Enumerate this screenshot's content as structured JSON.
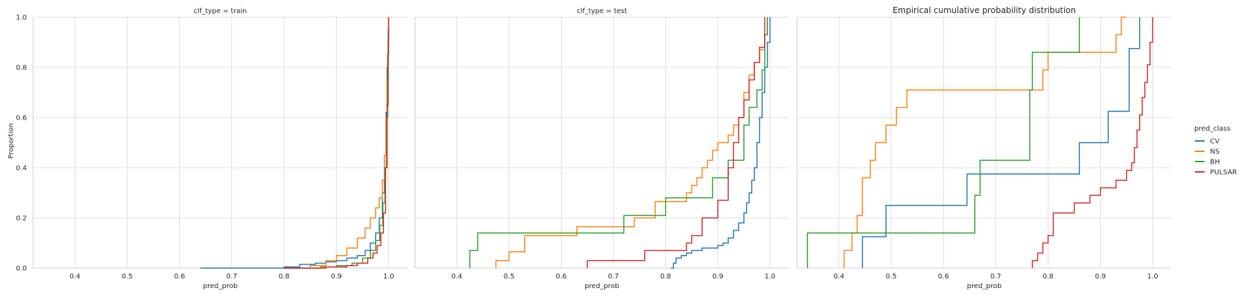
{
  "figure": {
    "suptitle": "Empirical cumulative probability distribution",
    "ylabel": "Proportion",
    "legend_title": "pred_class"
  },
  "colors": {
    "CV": "#1f77b4",
    "NS": "#ff7f0e",
    "BH": "#2ca02c",
    "PULSAR": "#d62728",
    "grid": "#dddddd",
    "axis": "#cccccc"
  },
  "chart_data": [
    {
      "type": "line",
      "subtype": "ecdf-step",
      "title": "clf_type = train",
      "xlabel": "pred_prob",
      "ylabel": "Proportion",
      "xlim": [
        0.32,
        1.036
      ],
      "ylim": [
        0,
        1
      ],
      "xticks": [
        "0.4",
        "0.5",
        "0.6",
        "0.7",
        "0.8",
        "0.9",
        "1.0"
      ],
      "yticks": [
        "0.0",
        "0.2",
        "0.4",
        "0.6",
        "0.8",
        "1.0"
      ],
      "grid": true,
      "series": [
        {
          "name": "CV",
          "x": [
            0.64,
            0.8,
            0.83,
            0.86,
            0.88,
            0.9,
            0.92,
            0.94,
            0.955,
            0.965,
            0.975,
            0.982,
            0.988,
            0.992,
            0.995,
            0.997,
            0.999,
            1.0
          ],
          "y": [
            0,
            0.005,
            0.015,
            0.02,
            0.025,
            0.03,
            0.04,
            0.05,
            0.07,
            0.1,
            0.14,
            0.2,
            0.3,
            0.45,
            0.62,
            0.8,
            0.95,
            1.0
          ]
        },
        {
          "name": "NS",
          "x": [
            0.8,
            0.85,
            0.88,
            0.9,
            0.92,
            0.94,
            0.955,
            0.965,
            0.975,
            0.982,
            0.988,
            0.992,
            0.995,
            0.997,
            0.999,
            1.0
          ],
          "y": [
            0,
            0.01,
            0.03,
            0.05,
            0.08,
            0.12,
            0.16,
            0.2,
            0.24,
            0.28,
            0.35,
            0.45,
            0.6,
            0.75,
            0.9,
            1.0
          ]
        },
        {
          "name": "BH",
          "x": [
            0.8,
            0.87,
            0.9,
            0.93,
            0.95,
            0.965,
            0.975,
            0.983,
            0.989,
            0.993,
            0.996,
            0.998,
            1.0
          ],
          "y": [
            0,
            0.005,
            0.01,
            0.02,
            0.04,
            0.07,
            0.11,
            0.17,
            0.26,
            0.4,
            0.6,
            0.85,
            1.0
          ]
        },
        {
          "name": "PULSAR",
          "x": [
            0.8,
            0.88,
            0.92,
            0.94,
            0.96,
            0.97,
            0.978,
            0.985,
            0.99,
            0.994,
            0.997,
            0.999,
            1.0
          ],
          "y": [
            0,
            0.005,
            0.01,
            0.02,
            0.04,
            0.06,
            0.09,
            0.14,
            0.22,
            0.4,
            0.65,
            0.9,
            1.0
          ]
        }
      ]
    },
    {
      "type": "line",
      "subtype": "ecdf-step",
      "title": "clf_type = test",
      "xlabel": "pred_prob",
      "xlim": [
        0.32,
        1.036
      ],
      "ylim": [
        0,
        1
      ],
      "xticks": [
        "0.4",
        "0.5",
        "0.6",
        "0.7",
        "0.8",
        "0.9",
        "1.0"
      ],
      "grid": true,
      "series": [
        {
          "name": "CV",
          "x": [
            0.81,
            0.815,
            0.82,
            0.83,
            0.84,
            0.85,
            0.87,
            0.9,
            0.91,
            0.92,
            0.93,
            0.94,
            0.95,
            0.955,
            0.96,
            0.965,
            0.97,
            0.975,
            0.98,
            0.985,
            0.99,
            0.995,
            1.0
          ],
          "y": [
            0,
            0.02,
            0.04,
            0.05,
            0.06,
            0.07,
            0.08,
            0.09,
            0.1,
            0.12,
            0.15,
            0.18,
            0.22,
            0.26,
            0.3,
            0.35,
            0.4,
            0.5,
            0.6,
            0.7,
            0.8,
            0.9,
            1.0
          ]
        },
        {
          "name": "NS",
          "x": [
            0.475,
            0.5,
            0.53,
            0.63,
            0.74,
            0.78,
            0.84,
            0.85,
            0.86,
            0.87,
            0.88,
            0.89,
            0.9,
            0.92,
            0.93,
            0.94,
            0.95,
            0.96,
            0.97,
            0.98,
            0.99,
            0.995
          ],
          "y": [
            0.03,
            0.065,
            0.13,
            0.165,
            0.2,
            0.265,
            0.3,
            0.33,
            0.36,
            0.4,
            0.43,
            0.47,
            0.5,
            0.53,
            0.57,
            0.6,
            0.7,
            0.77,
            0.82,
            0.87,
            0.93,
            1.0
          ]
        },
        {
          "name": "BH",
          "x": [
            0.425,
            0.44,
            0.72,
            0.8,
            0.89,
            0.92,
            0.95,
            0.96,
            0.975,
            0.985,
            0.99,
            0.995
          ],
          "y": [
            0.07,
            0.14,
            0.21,
            0.28,
            0.36,
            0.43,
            0.57,
            0.64,
            0.71,
            0.79,
            0.93,
            1.0
          ]
        },
        {
          "name": "PULSAR",
          "x": [
            0.65,
            0.76,
            0.84,
            0.85,
            0.87,
            0.9,
            0.92,
            0.93,
            0.94,
            0.95,
            0.96,
            0.97,
            0.98,
            0.99
          ],
          "y": [
            0.03,
            0.07,
            0.1,
            0.13,
            0.2,
            0.27,
            0.4,
            0.5,
            0.6,
            0.67,
            0.75,
            0.82,
            0.88,
            1.0
          ]
        }
      ]
    },
    {
      "type": "line",
      "subtype": "ecdf-step",
      "title": "",
      "xlabel": "pred_prob",
      "xlim": [
        0.32,
        1.036
      ],
      "ylim": [
        0,
        1
      ],
      "xticks": [
        "0.4",
        "0.5",
        "0.6",
        "0.7",
        "0.8",
        "0.9",
        "1.0"
      ],
      "grid": true,
      "series": [
        {
          "name": "CV",
          "x": [
            0.445,
            0.49,
            0.645,
            0.86,
            0.915,
            0.955,
            0.975
          ],
          "y": [
            0.125,
            0.25,
            0.375,
            0.5,
            0.625,
            0.875,
            1.0
          ]
        },
        {
          "name": "NS",
          "x": [
            0.41,
            0.425,
            0.435,
            0.445,
            0.46,
            0.47,
            0.49,
            0.51,
            0.53,
            0.79,
            0.8,
            0.93,
            0.94,
            0.95
          ],
          "y": [
            0.07,
            0.14,
            0.21,
            0.36,
            0.43,
            0.5,
            0.57,
            0.64,
            0.71,
            0.79,
            0.86,
            0.93,
            1.0,
            1.0
          ]
        },
        {
          "name": "BH",
          "x": [
            0.34,
            0.66,
            0.67,
            0.765,
            0.77,
            0.86
          ],
          "y": [
            0.14,
            0.29,
            0.43,
            0.71,
            0.86,
            1.0
          ]
        },
        {
          "name": "PULSAR",
          "x": [
            0.77,
            0.78,
            0.79,
            0.8,
            0.81,
            0.85,
            0.88,
            0.9,
            0.93,
            0.95,
            0.96,
            0.965,
            0.97,
            0.975,
            0.98,
            0.985,
            0.99,
            0.995,
            1.0
          ],
          "y": [
            0.03,
            0.06,
            0.1,
            0.13,
            0.22,
            0.26,
            0.29,
            0.32,
            0.35,
            0.39,
            0.42,
            0.48,
            0.55,
            0.61,
            0.68,
            0.74,
            0.81,
            0.9,
            1.0
          ]
        }
      ]
    }
  ]
}
